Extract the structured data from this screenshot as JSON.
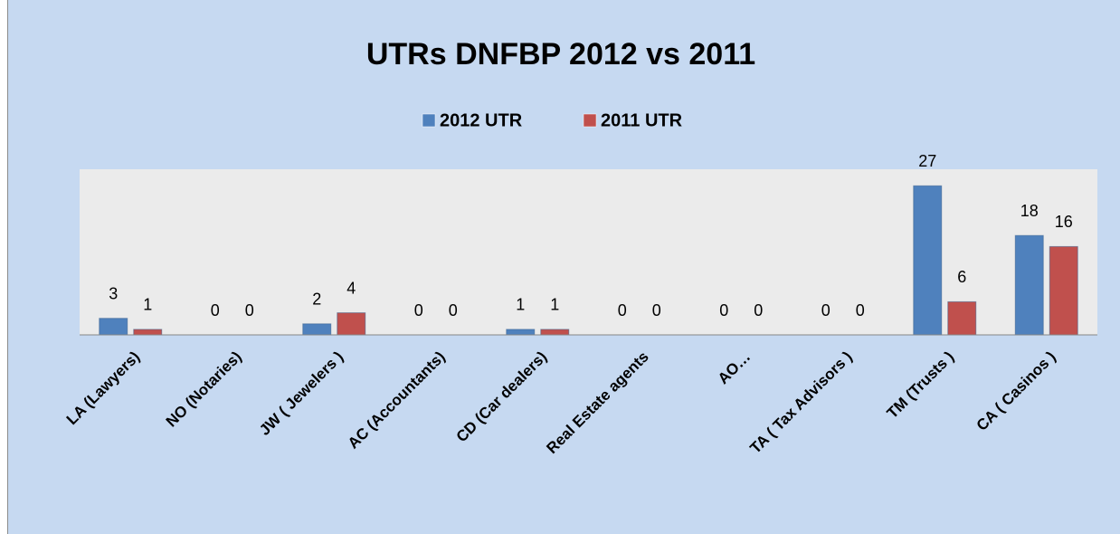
{
  "chart_data": {
    "type": "bar",
    "title": "UTRs DNFBP 2012 vs 2011",
    "categories": [
      "LA (Lawyers)",
      "NO (Notaries)",
      "JW ( Jewelers )",
      "AC (Accountants)",
      "CD (Car dealers)",
      "Real Estate agents",
      "AO…",
      "TA ( Tax Advisors )",
      "TM (Trusts )",
      "CA ( Casinos )"
    ],
    "series": [
      {
        "name": "2012 UTR",
        "color": "#4f81bd",
        "values": [
          3,
          0,
          2,
          0,
          1,
          0,
          0,
          0,
          27,
          18
        ]
      },
      {
        "name": "2011 UTR",
        "color": "#c0504d",
        "values": [
          1,
          0,
          4,
          0,
          1,
          0,
          0,
          0,
          6,
          16
        ]
      }
    ],
    "ylim": [
      0,
      30
    ],
    "legend": "top"
  }
}
